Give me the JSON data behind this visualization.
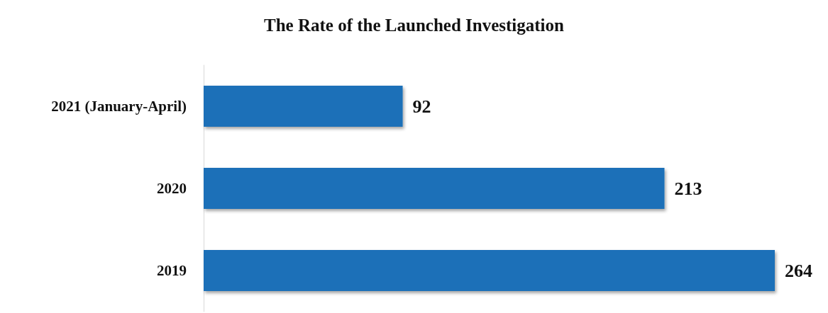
{
  "chart_data": {
    "type": "bar",
    "orientation": "horizontal",
    "title": "The Rate of the Launched Investigation",
    "categories": [
      "2021 (January-April)",
      "2020",
      "2019"
    ],
    "values": [
      92,
      213,
      264
    ],
    "color": "#1a6fb8",
    "data_labels": true
  }
}
